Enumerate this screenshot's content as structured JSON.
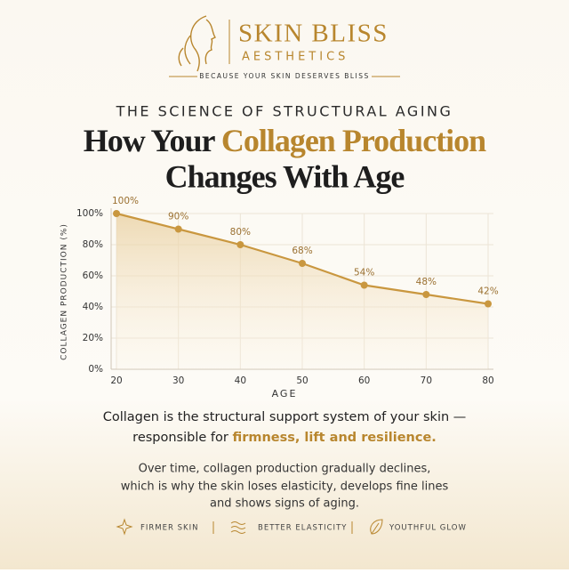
{
  "brand": {
    "name": "SKIN BLISS",
    "sub": "AESTHETICS",
    "tagline": "BECAUSE YOUR SKIN DESERVES BLISS"
  },
  "chart_data": {
    "type": "line",
    "subtitle": "THE SCIENCE OF STRUCTURAL AGING",
    "title": {
      "before": "How Your",
      "highlight": "Collagen Production",
      "after": "Changes With Age"
    },
    "x_label": "AGE",
    "y_label": "COLLAGEN PRODUCTION (%)",
    "x": [
      20,
      30,
      40,
      50,
      60,
      70,
      80
    ],
    "values": [
      100,
      90,
      80,
      68,
      54,
      48,
      42
    ],
    "value_labels": [
      "100%",
      "90%",
      "80%",
      "68%",
      "54%",
      "48%",
      "42%"
    ],
    "color": "#c9973f",
    "xlim": [
      20,
      80
    ],
    "xticks": [
      20,
      30,
      40,
      50,
      60,
      70,
      80
    ],
    "ylim": [
      0,
      100
    ],
    "yticks": [
      {
        "value": 0,
        "label": "0%"
      },
      {
        "value": 20,
        "label": "20%"
      },
      {
        "value": 40,
        "label": "40%"
      },
      {
        "value": 60,
        "label": "60%"
      },
      {
        "value": 80,
        "label": "80%"
      },
      {
        "value": 100,
        "label": "100%"
      }
    ],
    "grid": true
  },
  "body": {
    "line1": "Collagen is the structural support system of your skin —",
    "line2_start": "responsible for",
    "line2_highlight": "firmness, lift and resilience.",
    "paragraph": [
      "Over time, collagen production gradually declines,",
      "which is why the skin loses elasticity, develops fine lines",
      "and shows signs of aging."
    ]
  },
  "features": [
    "FIRMER SKIN",
    "BETTER ELASTICITY",
    "YOUTHFUL GLOW"
  ]
}
